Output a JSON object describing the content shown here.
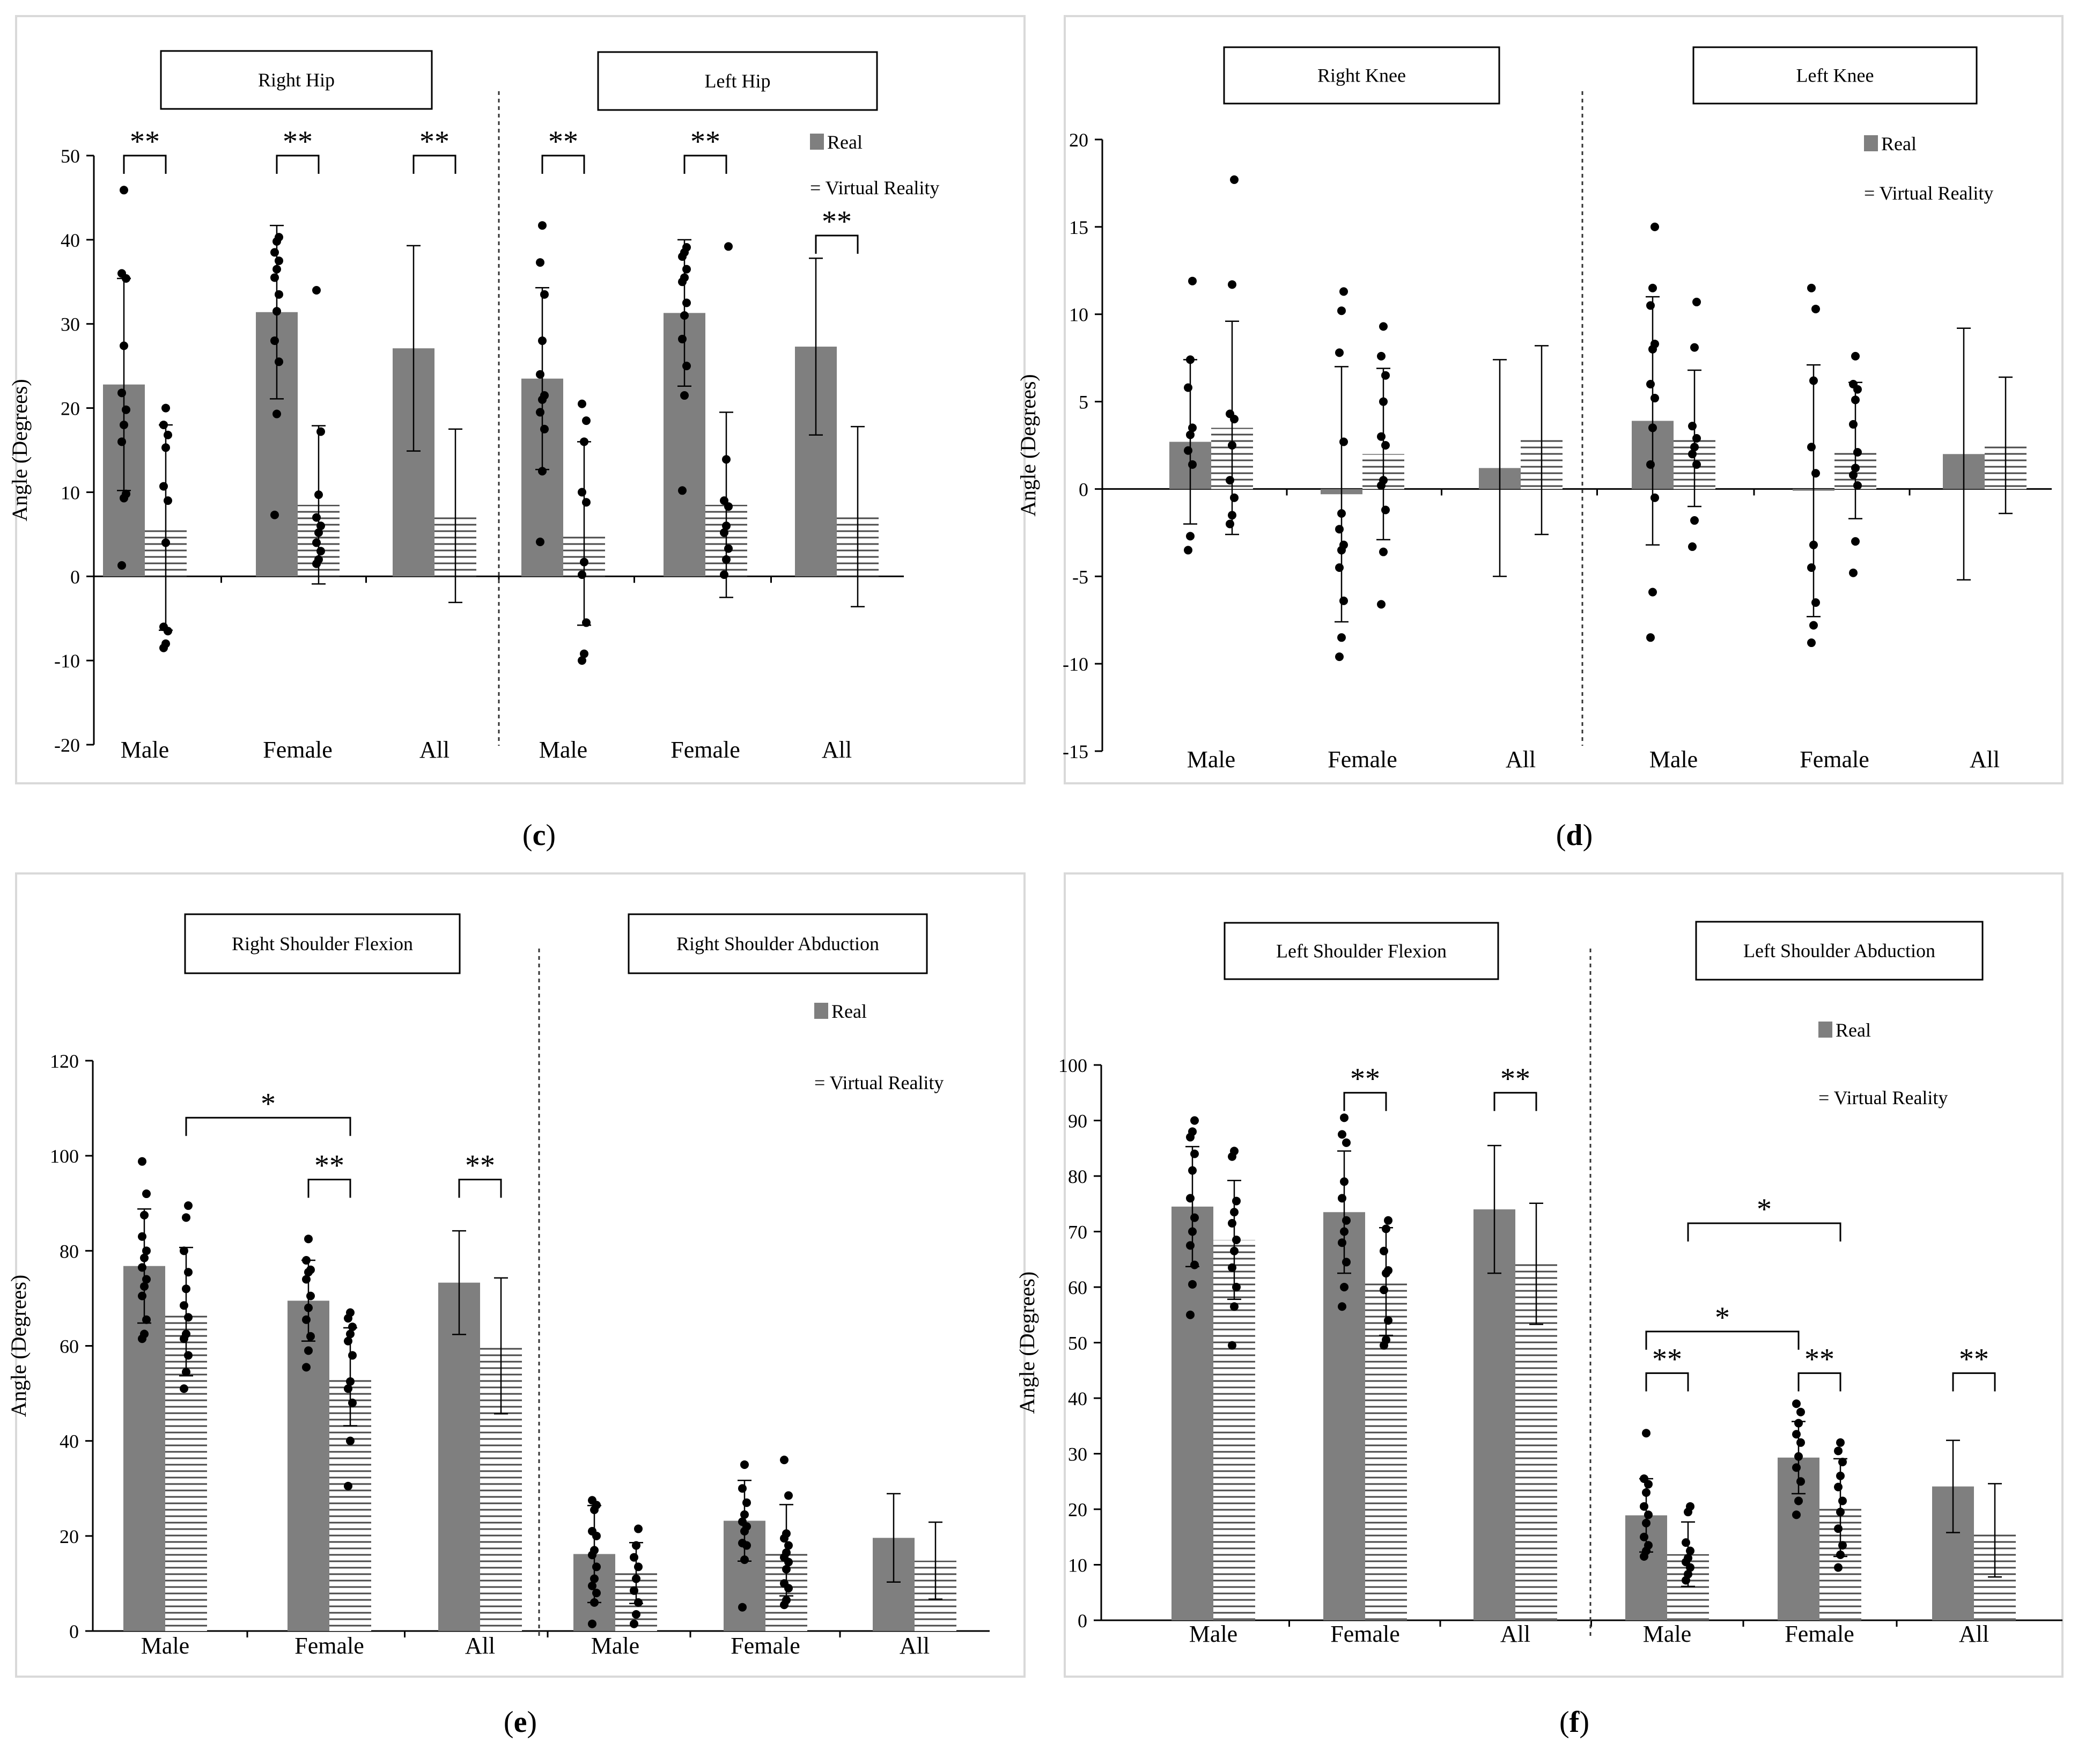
{
  "colors": {
    "real": "#7f7f7f",
    "vr_lines": "#4a4a4a",
    "axis": "#000000",
    "frame": "#d9d9d9",
    "point": "#000000"
  },
  "legend": {
    "real": "Real",
    "vr": "Virtual Reality",
    "vr_marker": "="
  },
  "chart_data": [
    {
      "id": "c",
      "panel_label": "c",
      "type": "bar",
      "ylabel": "Angle (Degrees)",
      "ylim": [
        -20,
        50
      ],
      "yticks": [
        -20,
        -10,
        0,
        10,
        20,
        30,
        40,
        50
      ],
      "groups": [
        {
          "title": "Right Hip",
          "categories": [
            "Male",
            "Female",
            "All"
          ],
          "series": [
            {
              "name": "Real",
              "values": [
                22.8,
                31.4,
                27.1
              ],
              "errors": [
                12.6,
                10.3,
                12.2
              ],
              "points": [
                [
                  1.3,
                  9.3,
                  9.8,
                  16,
                  18,
                  19.8,
                  21.8,
                  27.4,
                  35.4,
                  36,
                  45.9
                ],
                [
                  7.3,
                  19.3,
                  25.5,
                  28,
                  31.5,
                  33.5,
                  35.5,
                  36.5,
                  37.5,
                  38.5,
                  39.8,
                  40.3
                ],
                []
              ]
            },
            {
              "name": "Virtual Reality",
              "values": [
                5.8,
                8.5,
                7.2
              ],
              "errors": [
                12.2,
                9.4,
                10.3
              ],
              "points": [
                [
                  -8.5,
                  -8,
                  -6.5,
                  -6,
                  4,
                  9,
                  10.7,
                  15.3,
                  16.8,
                  18,
                  20
                ],
                [
                  1.5,
                  2,
                  3,
                  4,
                  5.2,
                  6,
                  7,
                  9.7,
                  17.2,
                  34
                ],
                []
              ]
            }
          ],
          "significance": [
            {
              "label": "**",
              "from": 0,
              "to": 0
            },
            {
              "label": "**",
              "from": 1,
              "to": 1
            },
            {
              "label": "**",
              "from": 2,
              "to": 2
            }
          ]
        },
        {
          "title": "Left Hip",
          "categories": [
            "Male",
            "Female",
            "All"
          ],
          "series": [
            {
              "name": "Real",
              "values": [
                23.5,
                31.3,
                27.3
              ],
              "errors": [
                10.8,
                8.7,
                10.5
              ],
              "points": [
                [
                  4.1,
                  12.5,
                  17.5,
                  19.5,
                  21,
                  21.5,
                  24,
                  28,
                  33.5,
                  37.3,
                  41.7
                ],
                [
                  10.2,
                  21.5,
                  25,
                  28.2,
                  31,
                  32.5,
                  35,
                  35.5,
                  36.5,
                  38,
                  38.5,
                  39.1
                ],
                []
              ]
            },
            {
              "name": "Virtual Reality",
              "values": [
                5.1,
                8.5,
                7.1
              ],
              "errors": [
                10.9,
                11,
                10.7
              ],
              "points": [
                [
                  -10,
                  -9.2,
                  -5.5,
                  0.2,
                  1.7,
                  8.8,
                  10,
                  16,
                  18.5,
                  20.5
                ],
                [
                  0.2,
                  2,
                  3.3,
                  5.2,
                  6,
                  8.3,
                  9,
                  13.9,
                  39.2
                ],
                []
              ]
            }
          ],
          "significance": [
            {
              "label": "**",
              "from": 0,
              "to": 0
            },
            {
              "label": "**",
              "from": 1,
              "to": 1
            },
            {
              "label": "**",
              "from": 2,
              "to": 2
            }
          ]
        }
      ]
    },
    {
      "id": "d",
      "panel_label": "d",
      "type": "bar",
      "ylabel": "Angle (Degrees)",
      "ylim": [
        -15,
        20
      ],
      "yticks": [
        -15,
        -10,
        -5,
        0,
        5,
        10,
        15,
        20
      ],
      "groups": [
        {
          "title": "Right Knee",
          "categories": [
            "Male",
            "Female",
            "All"
          ],
          "series": [
            {
              "name": "Real",
              "values": [
                2.7,
                -0.3,
                1.2
              ],
              "errors": [
                4.7,
                7.3,
                6.2
              ],
              "points": [
                [
                  -3.5,
                  -2.7,
                  1.4,
                  2.2,
                  3.1,
                  3.5,
                  5.8,
                  7.4,
                  11.9
                ],
                [
                  -9.6,
                  -8.5,
                  -6.4,
                  -4.5,
                  -3.5,
                  -3.2,
                  -2.3,
                  -1.4,
                  2.7,
                  7.8,
                  10.2,
                  11.3
                ],
                []
              ]
            },
            {
              "name": "Virtual Reality",
              "values": [
                3.5,
                2,
                2.8
              ],
              "errors": [
                6.1,
                4.9,
                5.4
              ],
              "points": [
                [
                  -2,
                  -1.5,
                  -0.5,
                  0.5,
                  2.5,
                  4,
                  4.3,
                  11.7,
                  17.7
                ],
                [
                  -6.6,
                  -3.6,
                  -1.2,
                  0.2,
                  0.5,
                  2.5,
                  3,
                  5,
                  6.5,
                  7.6,
                  9.3
                ],
                []
              ]
            }
          ],
          "significance": []
        },
        {
          "title": "Left Knee",
          "categories": [
            "Male",
            "Female",
            "All"
          ],
          "series": [
            {
              "name": "Real",
              "values": [
                3.9,
                -0.1,
                2
              ],
              "errors": [
                7.1,
                7.2,
                7.2
              ],
              "points": [
                [
                  -8.5,
                  -5.9,
                  -0.5,
                  1.4,
                  3.5,
                  5.2,
                  6,
                  8,
                  8.3,
                  10.5,
                  11.5,
                  15
                ],
                [
                  -8.8,
                  -7.8,
                  -6.5,
                  -4.5,
                  -3.2,
                  0.9,
                  2.4,
                  6.2,
                  10.3,
                  11.5
                ],
                []
              ]
            },
            {
              "name": "Virtual Reality",
              "values": [
                2.9,
                2.2,
                2.5
              ],
              "errors": [
                3.9,
                3.9,
                3.9
              ],
              "points": [
                [
                  -3.3,
                  -1.8,
                  1.4,
                  2,
                  2.4,
                  2.9,
                  3.6,
                  8.1,
                  10.7
                ],
                [
                  -4.8,
                  -3,
                  0.2,
                  0.8,
                  1.2,
                  2.1,
                  3.7,
                  5.1,
                  5.7,
                  6,
                  7.6
                ],
                []
              ]
            }
          ],
          "significance": []
        }
      ]
    },
    {
      "id": "e",
      "panel_label": "e",
      "type": "bar",
      "ylabel": "Angle (Degrees)",
      "ylim": [
        0,
        120
      ],
      "yticks": [
        0,
        20,
        40,
        60,
        80,
        100,
        120
      ],
      "groups": [
        {
          "title": "Right Shoulder Flexion",
          "categories": [
            "Male",
            "Female",
            "All"
          ],
          "series": [
            {
              "name": "Real",
              "values": [
                76.8,
                69.5,
                73.3
              ],
              "errors": [
                12,
                8.5,
                10.9
              ],
              "points": [
                [
                  61.5,
                  62.5,
                  65.5,
                  70.5,
                  72.5,
                  74,
                  76.5,
                  78.5,
                  80,
                  83,
                  87.5,
                  92,
                  98.8
                ],
                [
                  55.5,
                  59,
                  62,
                  65.5,
                  68,
                  70.5,
                  74,
                  75.5,
                  76,
                  78,
                  82.5
                ],
                []
              ]
            },
            {
              "name": "Virtual Reality",
              "values": [
                67.2,
                53.5,
                60
              ],
              "errors": [
                13.5,
                10.3,
                14.3
              ],
              "points": [
                [
                  51,
                  54.5,
                  58,
                  61.5,
                  62.5,
                  66,
                  68.5,
                  72,
                  75.5,
                  80,
                  87,
                  89.5
                ],
                [
                  30.5,
                  40,
                  48,
                  51,
                  52.5,
                  58,
                  61,
                  62.5,
                  64,
                  65.8,
                  67
                ],
                []
              ]
            }
          ],
          "significance": [
            {
              "label": "*",
              "from": 0,
              "to": 1,
              "series": [
                1,
                1
              ]
            },
            {
              "label": "**",
              "from": 1,
              "to": 1
            },
            {
              "label": "**",
              "from": 2,
              "to": 2
            }
          ]
        },
        {
          "title": "Right Shoulder Abduction",
          "categories": [
            "Male",
            "Female",
            "All"
          ],
          "series": [
            {
              "name": "Real",
              "values": [
                16.2,
                23.2,
                19.6
              ],
              "errors": [
                10.2,
                8.5,
                9.3
              ],
              "points": [
                [
                  1.5,
                  6,
                  8,
                  9.5,
                  11,
                  13.5,
                  16,
                  17,
                  20,
                  21,
                  25.5,
                  26.5,
                  27.5
                ],
                [
                  5,
                  15,
                  18,
                  18.5,
                  21,
                  22,
                  23,
                  24.5,
                  27,
                  30,
                  35
                ],
                []
              ]
            },
            {
              "name": "Virtual Reality",
              "values": [
                12.2,
                17,
                14.8
              ],
              "errors": [
                6.4,
                9.6,
                8.1
              ],
              "points": [
                [
                  1.5,
                  3.5,
                  6,
                  8.5,
                  11,
                  13.5,
                  15.5,
                  18,
                  21.5
                ],
                [
                  5.5,
                  6.5,
                  9,
                  10,
                  13,
                  14.5,
                  15.5,
                  16.5,
                  18,
                  19.5,
                  20.5,
                  28.5,
                  36
                ],
                []
              ]
            }
          ],
          "significance": []
        }
      ]
    },
    {
      "id": "f",
      "panel_label": "f",
      "type": "bar",
      "ylabel": "Angle (Degrees)",
      "ylim": [
        0,
        100
      ],
      "yticks": [
        0,
        10,
        20,
        30,
        40,
        50,
        60,
        70,
        80,
        90,
        100
      ],
      "groups": [
        {
          "title": "Left Shoulder Flexion",
          "categories": [
            "Male",
            "Female",
            "All"
          ],
          "series": [
            {
              "name": "Real",
              "values": [
                74.5,
                73.5,
                74
              ],
              "errors": [
                10.8,
                11,
                11.5
              ],
              "points": [
                [
                  55,
                  60.5,
                  64,
                  67.5,
                  70,
                  72.5,
                  76,
                  81,
                  84,
                  87,
                  88,
                  90
                ],
                [
                  56.5,
                  60,
                  64.5,
                  68,
                  70,
                  72,
                  76,
                  79,
                  86,
                  87.5,
                  90.5
                ],
                []
              ]
            },
            {
              "name": "Virtual Reality",
              "values": [
                68.5,
                61,
                64.2
              ],
              "errors": [
                10.7,
                9.7,
                10.9
              ],
              "points": [
                [
                  49.5,
                  56.5,
                  60,
                  63.5,
                  66.5,
                  68.5,
                  71.5,
                  73.5,
                  75.5,
                  83.5,
                  84.5
                ],
                [
                  49.5,
                  50.5,
                  54,
                  59.5,
                  62.5,
                  63,
                  66.5,
                  70.5,
                  72
                ],
                []
              ]
            }
          ],
          "significance": [
            {
              "label": "**",
              "from": 1,
              "to": 1
            },
            {
              "label": "**",
              "from": 2,
              "to": 2
            }
          ]
        },
        {
          "title": "Left Shoulder Abduction",
          "categories": [
            "Male",
            "Female",
            "All"
          ],
          "series": [
            {
              "name": "Real",
              "values": [
                18.9,
                29.3,
                24.1
              ],
              "errors": [
                6.6,
                6.5,
                8.3
              ],
              "points": [
                [
                  11.5,
                  12.5,
                  13.5,
                  15,
                  17.5,
                  19,
                  20.5,
                  23,
                  24.5,
                  25.5,
                  33.7
                ],
                [
                  19,
                  21.5,
                  25,
                  27.5,
                  29.5,
                  32,
                  33.5,
                  35.5,
                  37.5,
                  39
                ],
                []
              ]
            },
            {
              "name": "Virtual Reality",
              "values": [
                11.9,
                20.3,
                16.2
              ],
              "errors": [
                5.8,
                8.8,
                8.4
              ],
              "points": [
                [
                  7.2,
                  8.3,
                  9.5,
                  10.5,
                  11.2,
                  12.5,
                  14,
                  19.5,
                  20.5
                ],
                [
                  9.5,
                  11.8,
                  13.5,
                  16.5,
                  19.5,
                  21.5,
                  24,
                  26,
                  28.5,
                  30.5,
                  32
                ],
                []
              ]
            }
          ],
          "significance": [
            {
              "label": "*",
              "from": 0,
              "to": 1,
              "series": [
                1,
                1
              ]
            },
            {
              "label": "*",
              "from": 0,
              "to": 1,
              "series": [
                0,
                0
              ]
            },
            {
              "label": "**",
              "from": 0,
              "to": 0
            },
            {
              "label": "**",
              "from": 1,
              "to": 1
            },
            {
              "label": "**",
              "from": 2,
              "to": 2
            }
          ]
        }
      ]
    }
  ]
}
